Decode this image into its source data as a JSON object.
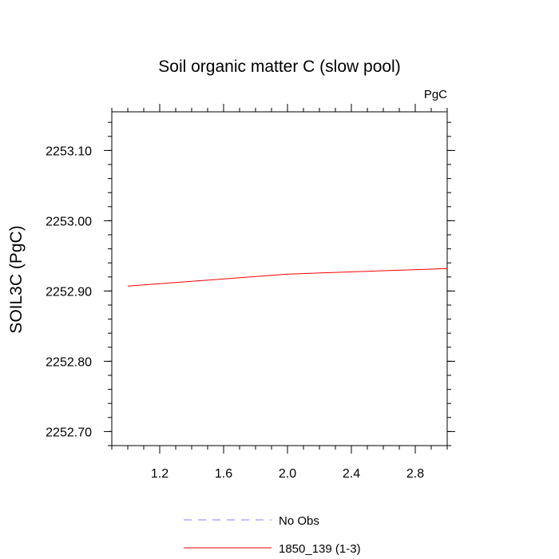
{
  "chart_data": {
    "type": "line",
    "title": "Soil organic matter C (slow pool)",
    "units_label": "PgC",
    "xlabel": "",
    "ylabel": "SOIL3C  (PgC)",
    "xlim": [
      0.9,
      3.0
    ],
    "ylim": [
      2252.68,
      2253.155
    ],
    "x_ticks": [
      1.2,
      1.6,
      2.0,
      2.4,
      2.8
    ],
    "x_tick_labels": [
      "1.2",
      "1.6",
      "2.0",
      "2.4",
      "2.8"
    ],
    "y_ticks": [
      2252.7,
      2252.8,
      2252.9,
      2253.0,
      2253.1
    ],
    "y_tick_labels": [
      "2252.70",
      "2252.80",
      "2252.90",
      "2253.00",
      "2253.10"
    ],
    "grid": false,
    "legend_position": "bottom",
    "series": [
      {
        "name": "No Obs",
        "color": "#8080ff",
        "dash": "dashed",
        "x": [],
        "y": []
      },
      {
        "name": "1850_139 (1-3)",
        "color": "#ff0000",
        "dash": "solid",
        "x": [
          1.0,
          2.0,
          3.0
        ],
        "y": [
          2252.907,
          2252.924,
          2252.932
        ]
      }
    ]
  }
}
